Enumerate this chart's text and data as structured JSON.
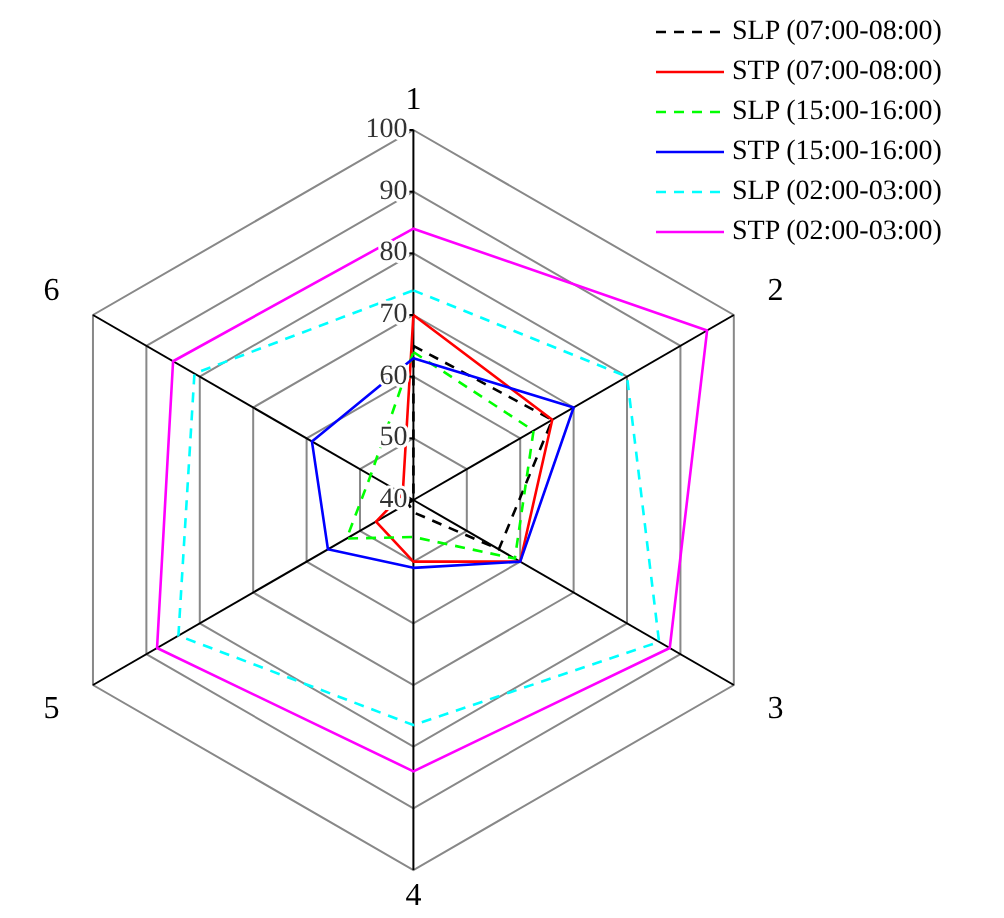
{
  "chart_data": {
    "type": "radar",
    "categories": [
      "1",
      "2",
      "3",
      "4",
      "5",
      "6"
    ],
    "ylim": [
      40,
      100
    ],
    "yticks": [
      40,
      50,
      60,
      70,
      80,
      90,
      100
    ],
    "grid": true,
    "legend": "top right",
    "series": [
      {
        "name": "SLP (07:00-08:00)",
        "color": "#000000",
        "line_style": "dashed",
        "values": [
          65,
          66,
          56,
          42,
          41,
          40
        ]
      },
      {
        "name": "STP (07:00-08:00)",
        "color": "#ff0000",
        "line_style": "solid",
        "values": [
          70,
          66,
          60,
          50,
          47,
          42
        ]
      },
      {
        "name": "SLP (15:00-16:00)",
        "color": "#00ff00",
        "line_style": "dashed",
        "values": [
          64,
          62.5,
          59,
          46,
          52.5,
          48
        ]
      },
      {
        "name": "STP (15:00-16:00)",
        "color": "#0000ff",
        "line_style": "solid",
        "values": [
          63,
          70,
          60,
          51,
          56,
          59
        ]
      },
      {
        "name": "SLP (02:00-03:00)",
        "color": "#00ffff",
        "line_style": "dashed",
        "values": [
          74,
          80,
          86,
          76.5,
          84,
          81
        ]
      },
      {
        "name": "STP (02:00-03:00)",
        "color": "#ff00ff",
        "line_style": "solid",
        "values": [
          84,
          95,
          88,
          84,
          88,
          85
        ]
      }
    ]
  }
}
